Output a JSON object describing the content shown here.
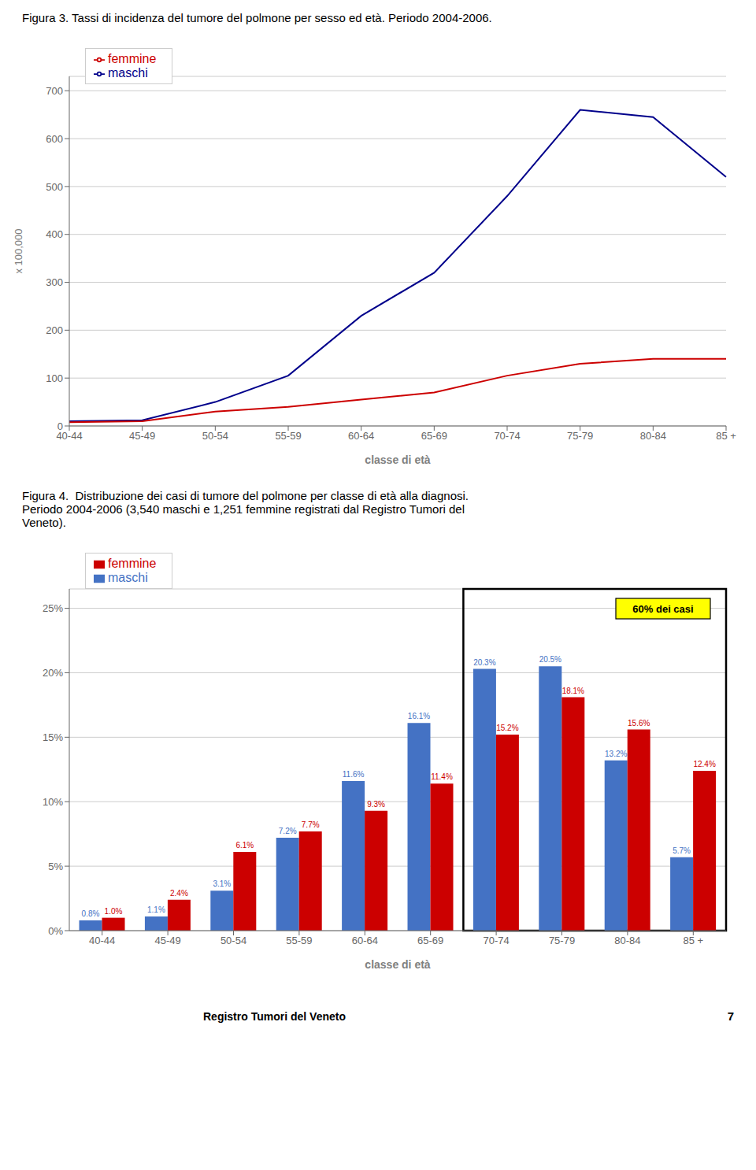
{
  "chart_data": [
    {
      "type": "line",
      "title": "Figura 3. Tassi di incidenza del tumore del polmone per sesso ed età. Periodo 2004-2006.",
      "categories": [
        "40-44",
        "45-49",
        "50-54",
        "55-59",
        "60-64",
        "65-69",
        "70-74",
        "75-79",
        "80-84",
        "85 +"
      ],
      "series": [
        {
          "name": "maschi",
          "color": "#00008B",
          "values": [
            10,
            12,
            50,
            105,
            230,
            320,
            480,
            660,
            645,
            520
          ]
        },
        {
          "name": "femmine",
          "color": "#CC0000",
          "values": [
            8,
            10,
            30,
            40,
            55,
            70,
            105,
            130,
            140,
            140
          ]
        }
      ],
      "x_label": "classe di età",
      "y_label": "x 100,000",
      "ylim": [
        0,
        730
      ],
      "yticks": [
        0,
        100,
        200,
        300,
        400,
        500,
        600,
        700
      ],
      "grid": true,
      "legend": "upper left"
    },
    {
      "type": "bar",
      "title": "Figura 4.  Distribuzione dei casi di tumore del polmone per classe di età alla diagnosi.\nPeriodo 2004-2006 (3,540 maschi e 1,251 femmine registrati dal Registro Tumori del\nVeneto).",
      "categories": [
        "40-44",
        "45-49",
        "50-54",
        "55-59",
        "60-64",
        "65-69",
        "70-74",
        "75-79",
        "80-84",
        "85 +"
      ],
      "series": [
        {
          "name": "maschi",
          "color": "#4472C4",
          "values": [
            0.8,
            1.1,
            3.1,
            7.2,
            11.6,
            16.1,
            20.3,
            20.5,
            13.2,
            5.7
          ],
          "value_labels": [
            "0.8%",
            "1.1%",
            "3.1%",
            "7.2%",
            "11.6%",
            "16.1%",
            "20.3%",
            "20.5%",
            "13.2%",
            "5.7%"
          ]
        },
        {
          "name": "femmine",
          "color": "#CC0000",
          "values": [
            1.0,
            2.4,
            6.1,
            7.7,
            9.3,
            11.4,
            15.2,
            18.1,
            15.6,
            12.4
          ],
          "value_labels": [
            "1.0%",
            "2.4%",
            "6.1%",
            "7.7%",
            "9.3%",
            "11.4%",
            "15.2%",
            "18.1%",
            "15.6%",
            "12.4%"
          ]
        }
      ],
      "x_label": "classe di età",
      "ylim": [
        0,
        26.5
      ],
      "yticks": [
        {
          "value": 0,
          "label": "0%"
        },
        {
          "value": 5,
          "label": "5%"
        },
        {
          "value": 10,
          "label": "10%"
        },
        {
          "value": 15,
          "label": "15%"
        },
        {
          "value": 20,
          "label": "20%"
        },
        {
          "value": 25,
          "label": "25%"
        }
      ],
      "grid": true,
      "legend": "upper left",
      "data_labels": true,
      "annotations": [
        "60% dei casi"
      ]
    }
  ],
  "footer": [
    "Registro Tumori del Veneto",
    "7"
  ]
}
